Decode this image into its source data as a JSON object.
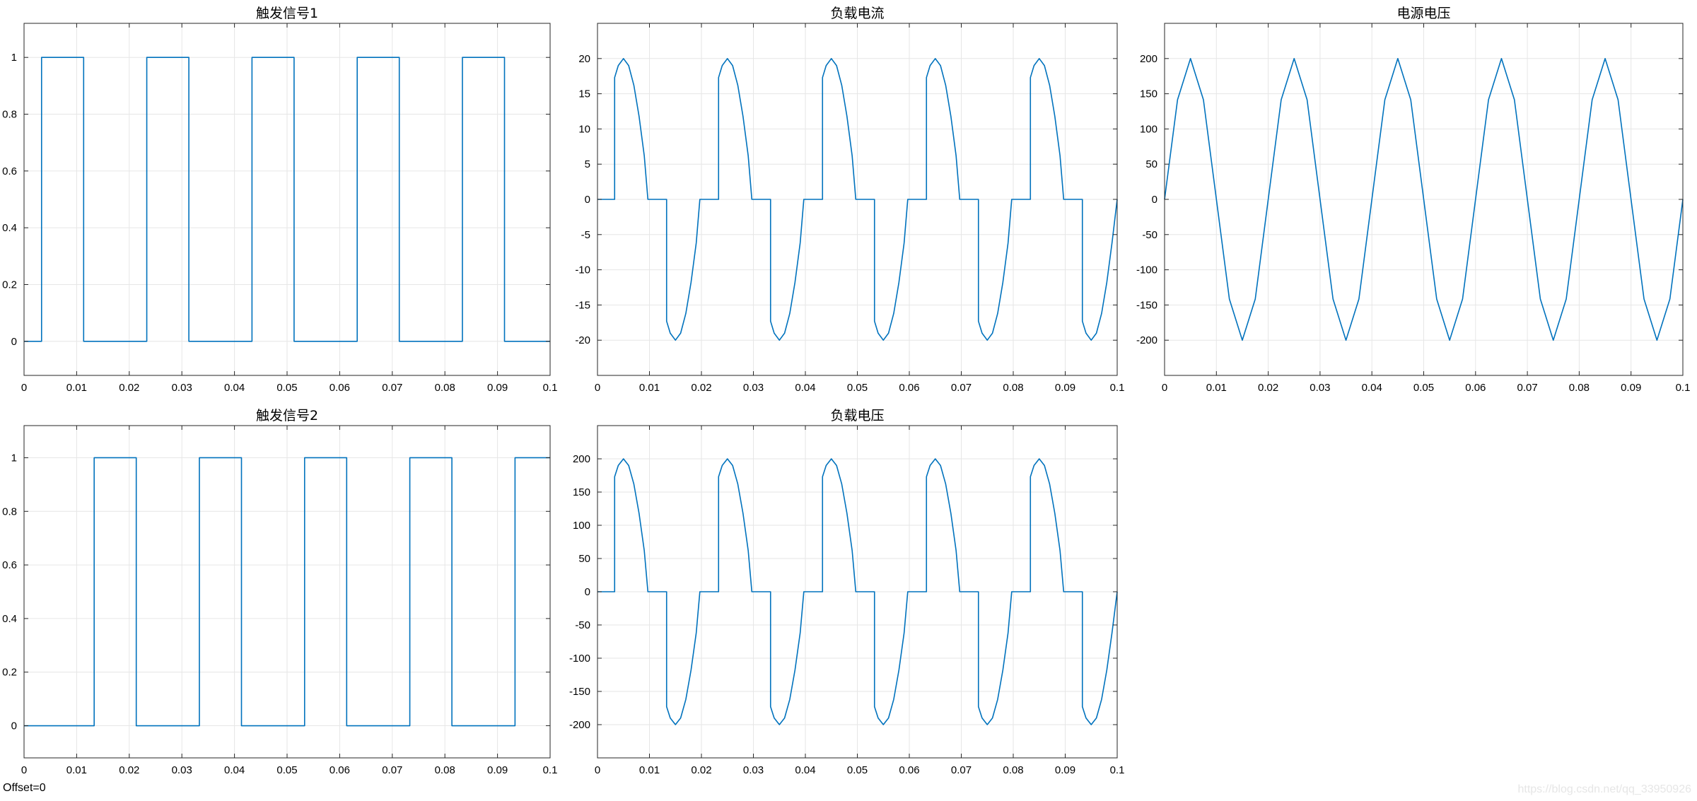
{
  "footer": {
    "offset_label": "Offset=0",
    "watermark": "https://blog.csdn.net/qq_33950926"
  },
  "style": {
    "line_color": "#0072bd",
    "grid_color": "#e6e6e6",
    "axis_color": "#262626"
  },
  "chart_data": [
    {
      "type": "line",
      "title": "触发信号1",
      "xlim": [
        0,
        0.1
      ],
      "ylim": [
        -0.12,
        1.12
      ],
      "xticks": [
        0,
        0.01,
        0.02,
        0.03,
        0.04,
        0.05,
        0.06,
        0.07,
        0.08,
        0.09,
        0.1
      ],
      "xticklabels": [
        "0",
        "0.01",
        "0.02",
        "0.03",
        "0.04",
        "0.05",
        "0.06",
        "0.07",
        "0.08",
        "0.09",
        "0.1"
      ],
      "yticks": [
        0,
        0.2,
        0.4,
        0.6,
        0.8,
        1
      ],
      "yticklabels": [
        "0",
        "0.2",
        "0.4",
        "0.6",
        "0.8",
        "1"
      ],
      "grid": true,
      "series": [
        {
          "x": [
            0,
            0.00333,
            0.00333,
            0.01133,
            0.01133,
            0.02333,
            0.02333,
            0.03133,
            0.03133,
            0.04333,
            0.04333,
            0.05133,
            0.05133,
            0.06333,
            0.06333,
            0.07133,
            0.07133,
            0.08333,
            0.08333,
            0.09133,
            0.09133,
            0.1
          ],
          "y": [
            0,
            0,
            1,
            1,
            0,
            0,
            1,
            1,
            0,
            0,
            1,
            1,
            0,
            0,
            1,
            1,
            0,
            0,
            1,
            1,
            0,
            0
          ]
        }
      ]
    },
    {
      "type": "line",
      "title": "负载电流",
      "xlim": [
        0,
        0.1
      ],
      "ylim": [
        -25,
        25
      ],
      "xticks": [
        0,
        0.01,
        0.02,
        0.03,
        0.04,
        0.05,
        0.06,
        0.07,
        0.08,
        0.09,
        0.1
      ],
      "xticklabels": [
        "0",
        "0.01",
        "0.02",
        "0.03",
        "0.04",
        "0.05",
        "0.06",
        "0.07",
        "0.08",
        "0.09",
        "0.1"
      ],
      "yticks": [
        -20,
        -15,
        -10,
        -5,
        0,
        5,
        10,
        15,
        20
      ],
      "yticklabels": [
        "-20",
        "-15",
        "-10",
        "-5",
        "0",
        "5",
        "10",
        "15",
        "20"
      ],
      "grid": true,
      "series": [
        {
          "x": [
            0,
            0.0033,
            0.0033,
            0.004,
            0.005,
            0.006,
            0.007,
            0.008,
            0.009,
            0.0097,
            0.0097,
            0.0133,
            0.0133,
            0.014,
            0.015,
            0.016,
            0.017,
            0.018,
            0.019,
            0.0197,
            0.0197,
            0.0233,
            0.0233,
            0.024,
            0.025,
            0.026,
            0.027,
            0.028,
            0.029,
            0.0297,
            0.0297,
            0.0333,
            0.0333,
            0.034,
            0.035,
            0.036,
            0.037,
            0.038,
            0.039,
            0.0397,
            0.0397,
            0.0433,
            0.0433,
            0.044,
            0.045,
            0.046,
            0.047,
            0.048,
            0.049,
            0.0497,
            0.0497,
            0.0533,
            0.0533,
            0.054,
            0.055,
            0.056,
            0.057,
            0.058,
            0.059,
            0.0597,
            0.0597,
            0.0633,
            0.0633,
            0.064,
            0.065,
            0.066,
            0.067,
            0.068,
            0.069,
            0.0697,
            0.0697,
            0.0733,
            0.0733,
            0.074,
            0.075,
            0.076,
            0.077,
            0.078,
            0.079,
            0.0797,
            0.0797,
            0.0833,
            0.0833,
            0.084,
            0.085,
            0.086,
            0.087,
            0.088,
            0.089,
            0.0897,
            0.0897,
            0.0933,
            0.0933,
            0.094,
            0.095,
            0.096,
            0.097,
            0.098,
            0.099,
            0.1
          ],
          "y": [
            0,
            0,
            17.3,
            19.0,
            20.0,
            19.0,
            16.2,
            11.8,
            6.2,
            0,
            0,
            0,
            -17.3,
            -19.0,
            -20.0,
            -19.0,
            -16.2,
            -11.8,
            -6.2,
            0,
            0,
            0,
            17.3,
            19.0,
            20.0,
            19.0,
            16.2,
            11.8,
            6.2,
            0,
            0,
            0,
            -17.3,
            -19.0,
            -20.0,
            -19.0,
            -16.2,
            -11.8,
            -6.2,
            0,
            0,
            0,
            17.3,
            19.0,
            20.0,
            19.0,
            16.2,
            11.8,
            6.2,
            0,
            0,
            0,
            -17.3,
            -19.0,
            -20.0,
            -19.0,
            -16.2,
            -11.8,
            -6.2,
            0,
            0,
            0,
            17.3,
            19.0,
            20.0,
            19.0,
            16.2,
            11.8,
            6.2,
            0,
            0,
            0,
            -17.3,
            -19.0,
            -20.0,
            -19.0,
            -16.2,
            -11.8,
            -6.2,
            0,
            0,
            0,
            17.3,
            19.0,
            20.0,
            19.0,
            16.2,
            11.8,
            6.2,
            0,
            0,
            0,
            -17.3,
            -19.0,
            -20.0,
            -19.0,
            -16.2,
            -11.8,
            -6.2,
            0
          ]
        }
      ]
    },
    {
      "type": "line",
      "title": "电源电压",
      "xlim": [
        0,
        0.1
      ],
      "ylim": [
        -250,
        250
      ],
      "xticks": [
        0,
        0.01,
        0.02,
        0.03,
        0.04,
        0.05,
        0.06,
        0.07,
        0.08,
        0.09,
        0.1
      ],
      "xticklabels": [
        "0",
        "0.01",
        "0.02",
        "0.03",
        "0.04",
        "0.05",
        "0.06",
        "0.07",
        "0.08",
        "0.09",
        "0.1"
      ],
      "yticks": [
        -200,
        -150,
        -100,
        -50,
        0,
        50,
        100,
        150,
        200
      ],
      "yticklabels": [
        "-200",
        "-150",
        "-100",
        "-50",
        "0",
        "50",
        "100",
        "150",
        "200"
      ],
      "grid": true,
      "series": [
        {
          "x": [
            0,
            0.0025,
            0.005,
            0.0075,
            0.01,
            0.0125,
            0.015,
            0.0175,
            0.02,
            0.0225,
            0.025,
            0.0275,
            0.03,
            0.0325,
            0.035,
            0.0375,
            0.04,
            0.0425,
            0.045,
            0.0475,
            0.05,
            0.0525,
            0.055,
            0.0575,
            0.06,
            0.0625,
            0.065,
            0.0675,
            0.07,
            0.0725,
            0.075,
            0.0775,
            0.08,
            0.0825,
            0.085,
            0.0875,
            0.09,
            0.0925,
            0.095,
            0.0975,
            0.1
          ],
          "y": [
            0,
            141.4,
            200,
            141.4,
            0,
            -141.4,
            -200,
            -141.4,
            0,
            141.4,
            200,
            141.4,
            0,
            -141.4,
            -200,
            -141.4,
            0,
            141.4,
            200,
            141.4,
            0,
            -141.4,
            -200,
            -141.4,
            0,
            141.4,
            200,
            141.4,
            0,
            -141.4,
            -200,
            -141.4,
            0,
            141.4,
            200,
            141.4,
            0,
            -141.4,
            -200,
            -141.4,
            0
          ]
        }
      ]
    },
    {
      "type": "line",
      "title": "触发信号2",
      "xlim": [
        0,
        0.1
      ],
      "ylim": [
        -0.12,
        1.12
      ],
      "xticks": [
        0,
        0.01,
        0.02,
        0.03,
        0.04,
        0.05,
        0.06,
        0.07,
        0.08,
        0.09,
        0.1
      ],
      "xticklabels": [
        "0",
        "0.01",
        "0.02",
        "0.03",
        "0.04",
        "0.05",
        "0.06",
        "0.07",
        "0.08",
        "0.09",
        "0.1"
      ],
      "yticks": [
        0,
        0.2,
        0.4,
        0.6,
        0.8,
        1
      ],
      "yticklabels": [
        "0",
        "0.2",
        "0.4",
        "0.6",
        "0.8",
        "1"
      ],
      "grid": true,
      "series": [
        {
          "x": [
            0,
            0.01333,
            0.01333,
            0.02133,
            0.02133,
            0.03333,
            0.03333,
            0.04133,
            0.04133,
            0.05333,
            0.05333,
            0.06133,
            0.06133,
            0.07333,
            0.07333,
            0.08133,
            0.08133,
            0.09333,
            0.09333,
            0.1
          ],
          "y": [
            0,
            0,
            1,
            1,
            0,
            0,
            1,
            1,
            0,
            0,
            1,
            1,
            0,
            0,
            1,
            1,
            0,
            0,
            1,
            1
          ]
        }
      ]
    },
    {
      "type": "line",
      "title": "负载电压",
      "xlim": [
        0,
        0.1
      ],
      "ylim": [
        -250,
        250
      ],
      "xticks": [
        0,
        0.01,
        0.02,
        0.03,
        0.04,
        0.05,
        0.06,
        0.07,
        0.08,
        0.09,
        0.1
      ],
      "xticklabels": [
        "0",
        "0.01",
        "0.02",
        "0.03",
        "0.04",
        "0.05",
        "0.06",
        "0.07",
        "0.08",
        "0.09",
        "0.1"
      ],
      "yticks": [
        -200,
        -150,
        -100,
        -50,
        0,
        50,
        100,
        150,
        200
      ],
      "yticklabels": [
        "-200",
        "-150",
        "-100",
        "-50",
        "0",
        "50",
        "100",
        "150",
        "200"
      ],
      "grid": true,
      "series": [
        {
          "x": [
            0,
            0.0033,
            0.0033,
            0.004,
            0.005,
            0.006,
            0.007,
            0.008,
            0.009,
            0.0097,
            0.0097,
            0.0133,
            0.0133,
            0.014,
            0.015,
            0.016,
            0.017,
            0.018,
            0.019,
            0.0197,
            0.0197,
            0.0233,
            0.0233,
            0.024,
            0.025,
            0.026,
            0.027,
            0.028,
            0.029,
            0.0297,
            0.0297,
            0.0333,
            0.0333,
            0.034,
            0.035,
            0.036,
            0.037,
            0.038,
            0.039,
            0.0397,
            0.0397,
            0.0433,
            0.0433,
            0.044,
            0.045,
            0.046,
            0.047,
            0.048,
            0.049,
            0.0497,
            0.0497,
            0.0533,
            0.0533,
            0.054,
            0.055,
            0.056,
            0.057,
            0.058,
            0.059,
            0.0597,
            0.0597,
            0.0633,
            0.0633,
            0.064,
            0.065,
            0.066,
            0.067,
            0.068,
            0.069,
            0.0697,
            0.0697,
            0.0733,
            0.0733,
            0.074,
            0.075,
            0.076,
            0.077,
            0.078,
            0.079,
            0.0797,
            0.0797,
            0.0833,
            0.0833,
            0.084,
            0.085,
            0.086,
            0.087,
            0.088,
            0.089,
            0.0897,
            0.0897,
            0.0933,
            0.0933,
            0.094,
            0.095,
            0.096,
            0.097,
            0.098,
            0.099,
            0.1
          ],
          "y": [
            0,
            0,
            173,
            190,
            200,
            190,
            162,
            118,
            62,
            0,
            0,
            0,
            -173,
            -190,
            -200,
            -190,
            -162,
            -118,
            -62,
            0,
            0,
            0,
            173,
            190,
            200,
            190,
            162,
            118,
            62,
            0,
            0,
            0,
            -173,
            -190,
            -200,
            -190,
            -162,
            -118,
            -62,
            0,
            0,
            0,
            173,
            190,
            200,
            190,
            162,
            118,
            62,
            0,
            0,
            0,
            -173,
            -190,
            -200,
            -190,
            -162,
            -118,
            -62,
            0,
            0,
            0,
            173,
            190,
            200,
            190,
            162,
            118,
            62,
            0,
            0,
            0,
            -173,
            -190,
            -200,
            -190,
            -162,
            -118,
            -62,
            0,
            0,
            0,
            173,
            190,
            200,
            190,
            162,
            118,
            62,
            0,
            0,
            0,
            -173,
            -190,
            -200,
            -190,
            -162,
            -118,
            -62,
            0
          ]
        }
      ]
    }
  ]
}
